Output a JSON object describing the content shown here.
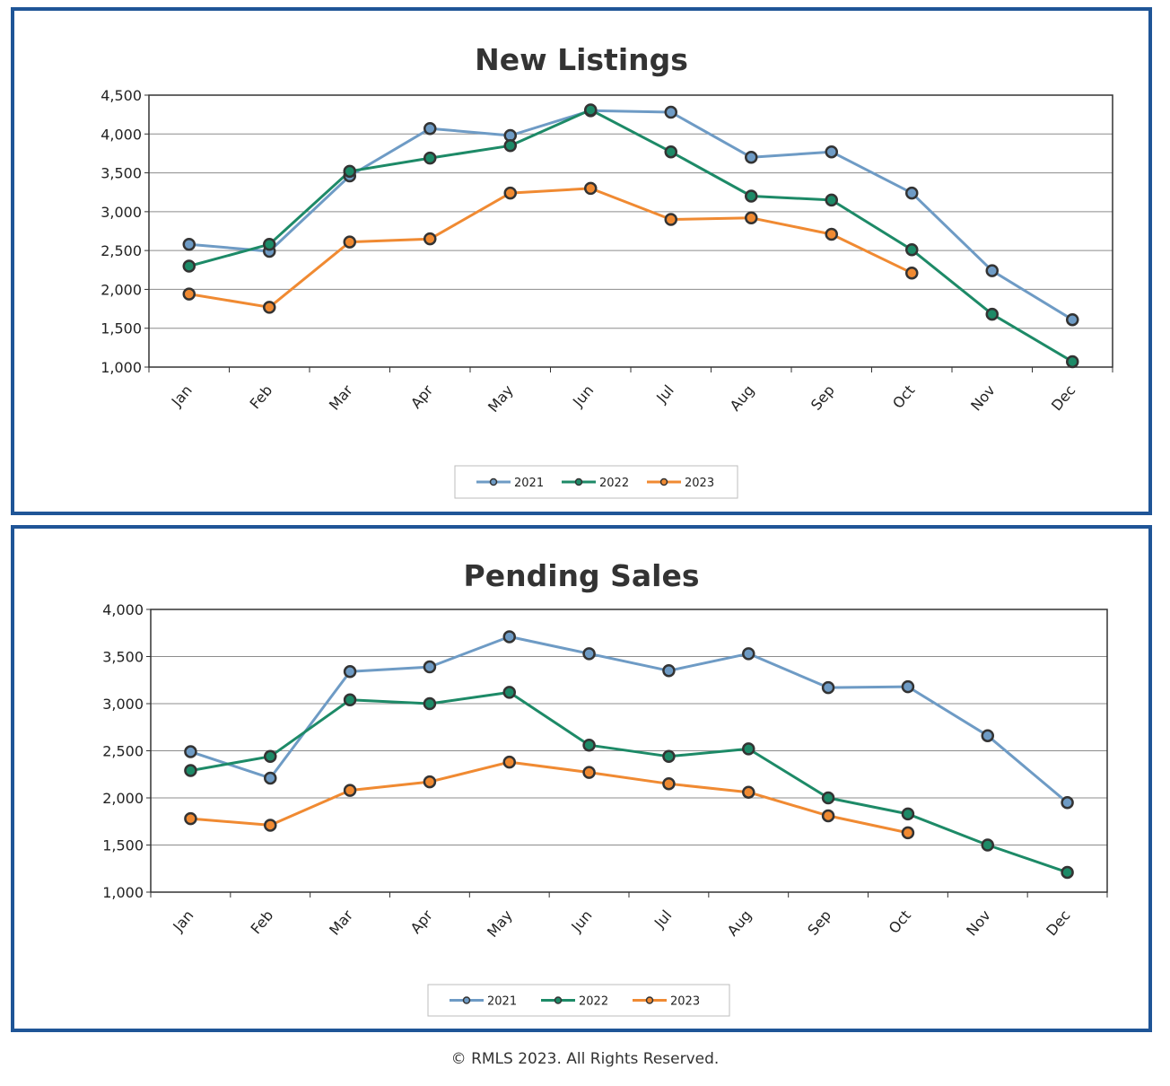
{
  "chart_data": [
    {
      "type": "line",
      "title": "New Listings",
      "categories": [
        "Jan",
        "Feb",
        "Mar",
        "Apr",
        "May",
        "Jun",
        "Jul",
        "Aug",
        "Sep",
        "Oct",
        "Nov",
        "Dec"
      ],
      "ylim": [
        1000,
        4500
      ],
      "yticks": [
        1000,
        1500,
        2000,
        2500,
        3000,
        3500,
        4000,
        4500
      ],
      "ytick_labels": [
        "1,000",
        "1,500",
        "2,000",
        "2,500",
        "3,000",
        "3,500",
        "4,000",
        "4,500"
      ],
      "grid": true,
      "legend_position": "bottom-center",
      "series": [
        {
          "name": "2021",
          "color": "#6e9bc5",
          "values": [
            2580,
            2490,
            3460,
            4070,
            3980,
            4300,
            4280,
            3700,
            3770,
            3240,
            2240,
            1610
          ]
        },
        {
          "name": "2022",
          "color": "#1d8a67",
          "values": [
            2300,
            2580,
            3520,
            3690,
            3850,
            4310,
            3770,
            3200,
            3150,
            2510,
            1680,
            1070
          ]
        },
        {
          "name": "2023",
          "color": "#f08a32",
          "values": [
            1940,
            1770,
            2610,
            2650,
            3240,
            3300,
            2900,
            2920,
            2710,
            2210,
            null,
            null
          ]
        }
      ]
    },
    {
      "type": "line",
      "title": "Pending Sales",
      "categories": [
        "Jan",
        "Feb",
        "Mar",
        "Apr",
        "May",
        "Jun",
        "Jul",
        "Aug",
        "Sep",
        "Oct",
        "Nov",
        "Dec"
      ],
      "ylim": [
        1000,
        4000
      ],
      "yticks": [
        1000,
        1500,
        2000,
        2500,
        3000,
        3500,
        4000
      ],
      "ytick_labels": [
        "1,000",
        "1,500",
        "2,000",
        "2,500",
        "3,000",
        "3,500",
        "4,000"
      ],
      "grid": true,
      "legend_position": "bottom-center",
      "series": [
        {
          "name": "2021",
          "color": "#6e9bc5",
          "values": [
            2490,
            2210,
            3340,
            3390,
            3710,
            3530,
            3350,
            3530,
            3170,
            3180,
            2660,
            1950
          ]
        },
        {
          "name": "2022",
          "color": "#1d8a67",
          "values": [
            2290,
            2440,
            3040,
            3000,
            3120,
            2560,
            2440,
            2520,
            2000,
            1830,
            1500,
            1210
          ]
        },
        {
          "name": "2023",
          "color": "#f08a32",
          "values": [
            1780,
            1710,
            2080,
            2170,
            2380,
            2270,
            2150,
            2060,
            1810,
            1630,
            null,
            null
          ]
        }
      ]
    }
  ],
  "footer": "© RMLS 2023. All Rights Reserved."
}
